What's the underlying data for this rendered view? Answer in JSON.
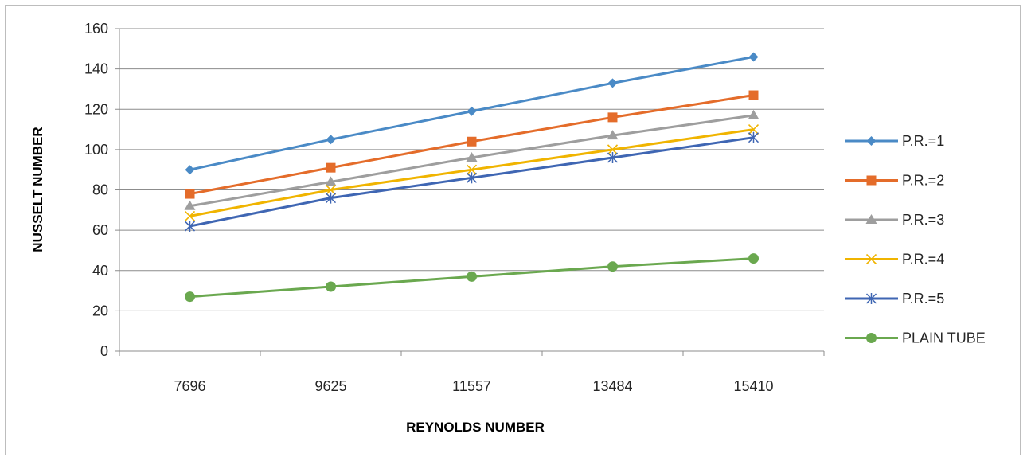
{
  "chart_data": {
    "type": "line",
    "title": "",
    "xlabel": "REYNOLDS NUMBER",
    "ylabel": "NUSSELT NUMBER",
    "categories": [
      "7696",
      "9625",
      "11557",
      "13484",
      "15410"
    ],
    "ylim": [
      0,
      160
    ],
    "yticks": [
      0,
      20,
      40,
      60,
      80,
      100,
      120,
      140,
      160
    ],
    "grid": true,
    "legend_position": "right",
    "series": [
      {
        "name": "P.R.=1",
        "values": [
          90,
          105,
          119,
          133,
          146
        ],
        "color": "#4a8ac6",
        "marker": "diamond"
      },
      {
        "name": "P.R.=2",
        "values": [
          78,
          91,
          104,
          116,
          127
        ],
        "color": "#e46c2a",
        "marker": "square"
      },
      {
        "name": "P.R.=3",
        "values": [
          72,
          84,
          96,
          107,
          117
        ],
        "color": "#9e9e9e",
        "marker": "triangle"
      },
      {
        "name": "P.R.=4",
        "values": [
          67,
          80,
          90,
          100,
          110
        ],
        "color": "#f0b400",
        "marker": "x"
      },
      {
        "name": "P.R.=5",
        "values": [
          62,
          76,
          86,
          96,
          106
        ],
        "color": "#3f66b3",
        "marker": "star"
      },
      {
        "name": "PLAIN TUBE",
        "values": [
          27,
          32,
          37,
          42,
          46
        ],
        "color": "#6aa84f",
        "marker": "circle"
      }
    ]
  }
}
